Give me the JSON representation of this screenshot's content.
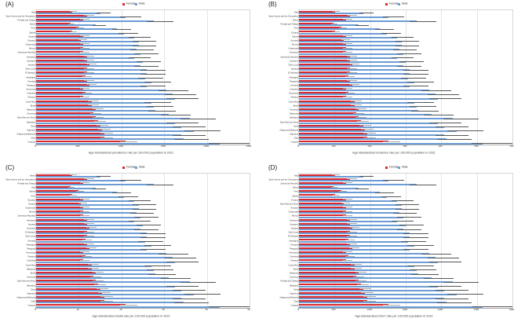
{
  "legend": {
    "female_label": "Female",
    "male_label": "Male"
  },
  "colors": {
    "female": "#d8282f",
    "male": "#6c9cd6",
    "female_error": "#a8a8a8",
    "male_error": "#565656",
    "grid": "#e4e4e4"
  },
  "chart_data": [
    {
      "type": "bar",
      "panel_label": "(A)",
      "orientation": "horizontal",
      "title": "Age-standardized prevalence rate per 100,000 population in 2021",
      "legend_position": "top-center",
      "grid": true,
      "xlim": [
        0,
        2500
      ],
      "xticks": [
        0,
        500,
        1000,
        1500,
        2000,
        2500
      ],
      "columns": [
        "location",
        "female",
        "male"
      ],
      "rows": [
        [
          "Haiti",
          425,
          750
        ],
        [
          "Saint Vincent and the Grenadines",
          600,
          1050
        ],
        [
          "Trinidad and Tobago",
          550,
          1375
        ],
        [
          "Belize",
          400,
          700
        ],
        [
          "Peru",
          500,
          950
        ],
        [
          "Bolivia",
          425,
          1025
        ],
        [
          "Guyana",
          550,
          1150
        ],
        [
          "Ecuador",
          525,
          1200
        ],
        [
          "Guatemala",
          550,
          1200
        ],
        [
          "Mexico",
          550,
          1175
        ],
        [
          "Dominican Republic",
          550,
          1225
        ],
        [
          "Honduras",
          600,
          1150
        ],
        [
          "Suriname",
          600,
          1250
        ],
        [
          "Jamaica",
          625,
          1225
        ],
        [
          "Saint Lucia",
          600,
          1300
        ],
        [
          "El Salvador",
          600,
          1300
        ],
        [
          "Nicaragua",
          575,
          1275
        ],
        [
          "Grenada",
          600,
          1350
        ],
        [
          "Paraguay",
          625,
          1300
        ],
        [
          "Venezuela",
          550,
          1525
        ],
        [
          "Colombia",
          575,
          1600
        ],
        [
          "Panama",
          550,
          1625
        ],
        [
          "Costa Rica",
          650,
          1350
        ],
        [
          "Brazil",
          650,
          1375
        ],
        [
          "Bahamas",
          700,
          1400
        ],
        [
          "Dominica",
          675,
          1550
        ],
        [
          "Saint Kitts and Nevis",
          700,
          1800
        ],
        [
          "Barbados",
          725,
          1625
        ],
        [
          "Cuba",
          750,
          1700
        ],
        [
          "Argentina",
          775,
          1850
        ],
        [
          "Antigua and Barbuda",
          800,
          1700
        ],
        [
          "Chile",
          800,
          1725
        ],
        [
          "Uruguay",
          1050,
          2150
        ]
      ]
    },
    {
      "type": "bar",
      "panel_label": "(B)",
      "orientation": "horizontal",
      "title": "Age-standardized incidence rate per 100,000 population in 2021",
      "legend_position": "top-center",
      "grid": true,
      "xlim": [
        0,
        600
      ],
      "xticks": [
        0,
        100,
        200,
        300,
        400,
        500,
        600
      ],
      "columns": [
        "location",
        "female",
        "male"
      ],
      "rows": [
        [
          "Haiti",
          102,
          180
        ],
        [
          "Saint Vincent and the Grenadines",
          144,
          252
        ],
        [
          "Belize",
          132,
          330
        ],
        [
          "Trinidad and Tobago",
          96,
          168
        ],
        [
          "Peru",
          120,
          228
        ],
        [
          "Guyana",
          102,
          246
        ],
        [
          "Bolivia",
          132,
          276
        ],
        [
          "Ecuador",
          126,
          288
        ],
        [
          "Mexico",
          132,
          288
        ],
        [
          "Guatemala",
          132,
          282
        ],
        [
          "Honduras",
          132,
          294
        ],
        [
          "Dominican Republic",
          144,
          276
        ],
        [
          "Suriname",
          144,
          300
        ],
        [
          "Saint Lucia",
          150,
          294
        ],
        [
          "Jamaica",
          144,
          312
        ],
        [
          "El Salvador",
          144,
          312
        ],
        [
          "Nicaragua",
          138,
          306
        ],
        [
          "Paraguay",
          144,
          324
        ],
        [
          "Grenada",
          150,
          312
        ],
        [
          "Colombia",
          132,
          366
        ],
        [
          "Venezuela",
          138,
          384
        ],
        [
          "Panama",
          132,
          390
        ],
        [
          "Costa Rica",
          156,
          324
        ],
        [
          "Brazil",
          156,
          330
        ],
        [
          "Dominica",
          168,
          336
        ],
        [
          "Bahamas",
          162,
          372
        ],
        [
          "Barbados",
          168,
          432
        ],
        [
          "Saint Kitts and Nevis",
          174,
          390
        ],
        [
          "Cuba",
          180,
          408
        ],
        [
          "Antigua and Barbuda",
          186,
          444
        ],
        [
          "Argentina",
          192,
          408
        ],
        [
          "Chile",
          192,
          414
        ],
        [
          "Uruguay",
          252,
          516
        ]
      ]
    },
    {
      "type": "bar",
      "panel_label": "(C)",
      "orientation": "horizontal",
      "title": "Age-standardized death rate per 100,000 population in 2021",
      "legend_position": "top-center",
      "grid": true,
      "xlim": [
        0,
        50
      ],
      "xticks": [
        0,
        10,
        20,
        30,
        40,
        50
      ],
      "columns": [
        "location",
        "female",
        "male"
      ],
      "rows": [
        [
          "Belize",
          8.5,
          15
        ],
        [
          "Saint Vincent and the Grenadines",
          12,
          21
        ],
        [
          "Trinidad and Tobago",
          11,
          27.5
        ],
        [
          "Haiti",
          8,
          14
        ],
        [
          "Bolivia",
          10,
          19
        ],
        [
          "Peru",
          8.5,
          20.5
        ],
        [
          "Ecuador",
          11,
          23
        ],
        [
          "Guyana",
          10.5,
          24
        ],
        [
          "Guatemala",
          11,
          24
        ],
        [
          "Mexico",
          11,
          23.5
        ],
        [
          "Dominican Republic",
          11,
          24.5
        ],
        [
          "Honduras",
          12,
          23
        ],
        [
          "Jamaica",
          12,
          25
        ],
        [
          "Suriname",
          12.5,
          24.5
        ],
        [
          "El Salvador",
          12,
          26
        ],
        [
          "Saint Lucia",
          12,
          26
        ],
        [
          "Grenada",
          11.5,
          25.5
        ],
        [
          "Nicaragua",
          12,
          27
        ],
        [
          "Paraguay",
          12.5,
          26
        ],
        [
          "Venezuela",
          11,
          30.5
        ],
        [
          "Panama",
          11.5,
          32
        ],
        [
          "Colombia",
          11,
          32.5
        ],
        [
          "Costa Rica",
          13,
          27
        ],
        [
          "Bahamas",
          13,
          27.5
        ],
        [
          "Brazil",
          14,
          28
        ],
        [
          "Dominica",
          13.5,
          31
        ],
        [
          "Saint Kitts and Nevis",
          14,
          36
        ],
        [
          "Barbados",
          14.5,
          32.5
        ],
        [
          "Cuba",
          15,
          34
        ],
        [
          "Argentina",
          15.5,
          37
        ],
        [
          "Antigua and Barbuda",
          16,
          34
        ],
        [
          "Chile",
          16,
          34.5
        ],
        [
          "Uruguay",
          21,
          43
        ]
      ]
    },
    {
      "type": "bar",
      "panel_label": "(D)",
      "orientation": "horizontal",
      "title": "Age-standardized DALY rate per 100,000 population in 2021",
      "legend_position": "top-center",
      "grid": true,
      "xlim": [
        0,
        3000
      ],
      "xticks": [
        0,
        500,
        1000,
        1500,
        2000,
        2500,
        3000
      ],
      "columns": [
        "location",
        "female",
        "male"
      ],
      "rows": [
        [
          "Haiti",
          510,
          900
        ],
        [
          "Saint Vincent and the Grenadines",
          720,
          1260
        ],
        [
          "Dominican Republic",
          660,
          1650
        ],
        [
          "Belize",
          480,
          840
        ],
        [
          "Peru",
          600,
          1140
        ],
        [
          "Bolivia",
          510,
          1230
        ],
        [
          "Guyana",
          660,
          1380
        ],
        [
          "Saint Kitts and Nevis",
          630,
          1440
        ],
        [
          "Ecuador",
          660,
          1440
        ],
        [
          "Guatemala",
          660,
          1410
        ],
        [
          "Mexico",
          660,
          1470
        ],
        [
          "Honduras",
          720,
          1380
        ],
        [
          "Suriname",
          720,
          1500
        ],
        [
          "Jamaica",
          750,
          1470
        ],
        [
          "Saint Lucia",
          720,
          1560
        ],
        [
          "El Salvador",
          720,
          1560
        ],
        [
          "Nicaragua",
          690,
          1530
        ],
        [
          "Grenada",
          720,
          1620
        ],
        [
          "Paraguay",
          750,
          1560
        ],
        [
          "Venezuela",
          660,
          1830
        ],
        [
          "Colombia",
          690,
          1920
        ],
        [
          "Panama",
          660,
          1950
        ],
        [
          "Costa Rica",
          780,
          1620
        ],
        [
          "Brazil",
          780,
          1650
        ],
        [
          "Bahamas",
          840,
          1680
        ],
        [
          "Dominica",
          810,
          1860
        ],
        [
          "Trinidad and Tobago",
          840,
          2160
        ],
        [
          "Barbados",
          870,
          1950
        ],
        [
          "Cuba",
          900,
          2040
        ],
        [
          "Argentina",
          930,
          2220
        ],
        [
          "Antigua and Barbuda",
          960,
          2040
        ],
        [
          "Chile",
          960,
          2070
        ],
        [
          "Uruguay",
          1260,
          2580
        ]
      ]
    }
  ]
}
